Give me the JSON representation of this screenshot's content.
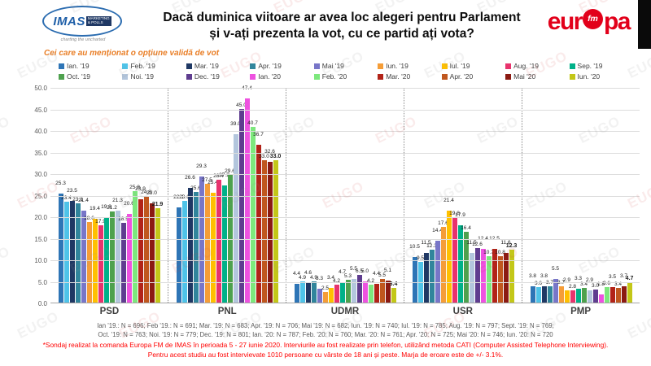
{
  "watermark": "EUGO",
  "header": {
    "title_line1": "Dacă duminica viitoare ar avea loc alegeri pentru Parlament",
    "title_line2": "și v-ați prezenta la vot, cu ce partid ați vota?",
    "imas_logo": {
      "name": "IMAS",
      "sub1": "MARKETING",
      "sub2": "& POLLS",
      "tagline": "charting the uncharted"
    },
    "europafm_logo": {
      "left": "eur",
      "badge": "fm",
      "right": "pa"
    }
  },
  "subtitle": "Cei care au menționat o opțiune validă de vot",
  "chart_data": {
    "type": "bar",
    "title": "Dacă duminica viitoare ar avea loc alegeri pentru Parlament și v-ați prezenta la vot, cu ce partid ați vota?",
    "subtitle": "Cei care au menționat o opțiune validă de vot",
    "categories": [
      "PSD",
      "PNL",
      "UDMR",
      "USR",
      "PMP"
    ],
    "ylim": [
      0,
      50
    ],
    "ytick_step": 5,
    "grid": true,
    "legend_position": "top",
    "value_label_decimals": 1,
    "last_series_bold": true,
    "series": [
      {
        "name": "Ian. '19",
        "color": "#2e75b6",
        "values": [
          25.3,
          22.1,
          4.4,
          10.5,
          3.8
        ]
      },
      {
        "name": "Feb. '19",
        "color": "#4fc3e8",
        "values": [
          23.4,
          23.6,
          4.9,
          9.5,
          3.6
        ]
      },
      {
        "name": "Mar. '19",
        "color": "#1f3864",
        "values": [
          23.5,
          26.6,
          4.6,
          11.5,
          3.8
        ]
      },
      {
        "name": "Apr. '19",
        "color": "#31859c",
        "values": [
          23.1,
          25.6,
          4.9,
          12.3,
          3.7
        ]
      },
      {
        "name": "Mai '19",
        "color": "#7876c8",
        "values": [
          21.4,
          29.3,
          3.3,
          14.4,
          5.5
        ]
      },
      {
        "name": "Iun. '19",
        "color": "#f59d38",
        "values": [
          18.6,
          27.5,
          2.5,
          17.6,
          3.7
        ]
      },
      {
        "name": "Iul. '19",
        "color": "#ffc000",
        "values": [
          19.4,
          25.4,
          3.4,
          21.4,
          2.9
        ]
      },
      {
        "name": "Aug. '19",
        "color": "#e8336d",
        "values": [
          17.9,
          28.4,
          4.2,
          19.8,
          2.8
        ]
      },
      {
        "name": "Sep. '19",
        "color": "#00b189",
        "values": [
          19.8,
          27.2,
          4.7,
          17.9,
          3.3
        ]
      },
      {
        "name": "Oct. '19",
        "color": "#4ea14e",
        "values": [
          21.2,
          29.6,
          5.3,
          16.4,
          3.4
        ]
      },
      {
        "name": "Noi. '19",
        "color": "#b3c6dd",
        "values": [
          21.3,
          39.0,
          5.5,
          11.5,
          2.9
        ]
      },
      {
        "name": "Dec. '19",
        "color": "#5f3d8f",
        "values": [
          18.5,
          45.0,
          6.5,
          12.6,
          3.0
        ]
      },
      {
        "name": "Ian. '20",
        "color": "#ee52e0",
        "values": [
          20.6,
          47.4,
          5.0,
          12.4,
          1.8
        ]
      },
      {
        "name": "Feb. '20",
        "color": "#7de87d",
        "values": [
          25.8,
          40.7,
          4.2,
          10.7,
          3.6
        ]
      },
      {
        "name": "Mar. '20",
        "color": "#b22318",
        "values": [
          23.9,
          36.7,
          4.4,
          12.5,
          3.5
        ]
      },
      {
        "name": "Apr. '20",
        "color": "#c0571e",
        "values": [
          24.8,
          33.0,
          5.5,
          10.8,
          3.4
        ]
      },
      {
        "name": "Mai '20",
        "color": "#8b1a12",
        "values": [
          23.0,
          32.6,
          5.1,
          11.6,
          3.7
        ]
      },
      {
        "name": "Iun. '20",
        "color": "#c3c718",
        "values": [
          21.9,
          33.0,
          3.4,
          12.3,
          4.7
        ]
      }
    ]
  },
  "footer": {
    "n_line1": "Ian '19.: N = 696; Feb '19.: N = 691; Mar. '19: N = 683; Apr. '19: N = 706; Mai '19: N = 682; Iun. '19: N = 740; Iul. '19: N = 785; Aug. '19: N = 797; Sept. '19: N = 769;",
    "n_line2": "Oct. '19: N = 763; Noi. '19: N = 779; Dec. '19: N = 801; Ian. '20: N = 787; Feb. '20: N = 760; Mar. '20: N = 761; Apr. '20: N = 725; Mai '20: N = 746; Iun. '20: N = 720",
    "note_line1": "*Sondaj realizat la comanda Europa FM de IMAS în perioada  5 - 27 iunie 2020. Interviurile au fost realizate prin telefon, utilizând metoda CATI (Computer Assisted Telephone Interviewing).",
    "note_line2": "Pentru acest studiu au fost intervievate 1010 persoane cu vârste de 18 ani și peste. Marja de eroare este de +/- 3.1%."
  }
}
